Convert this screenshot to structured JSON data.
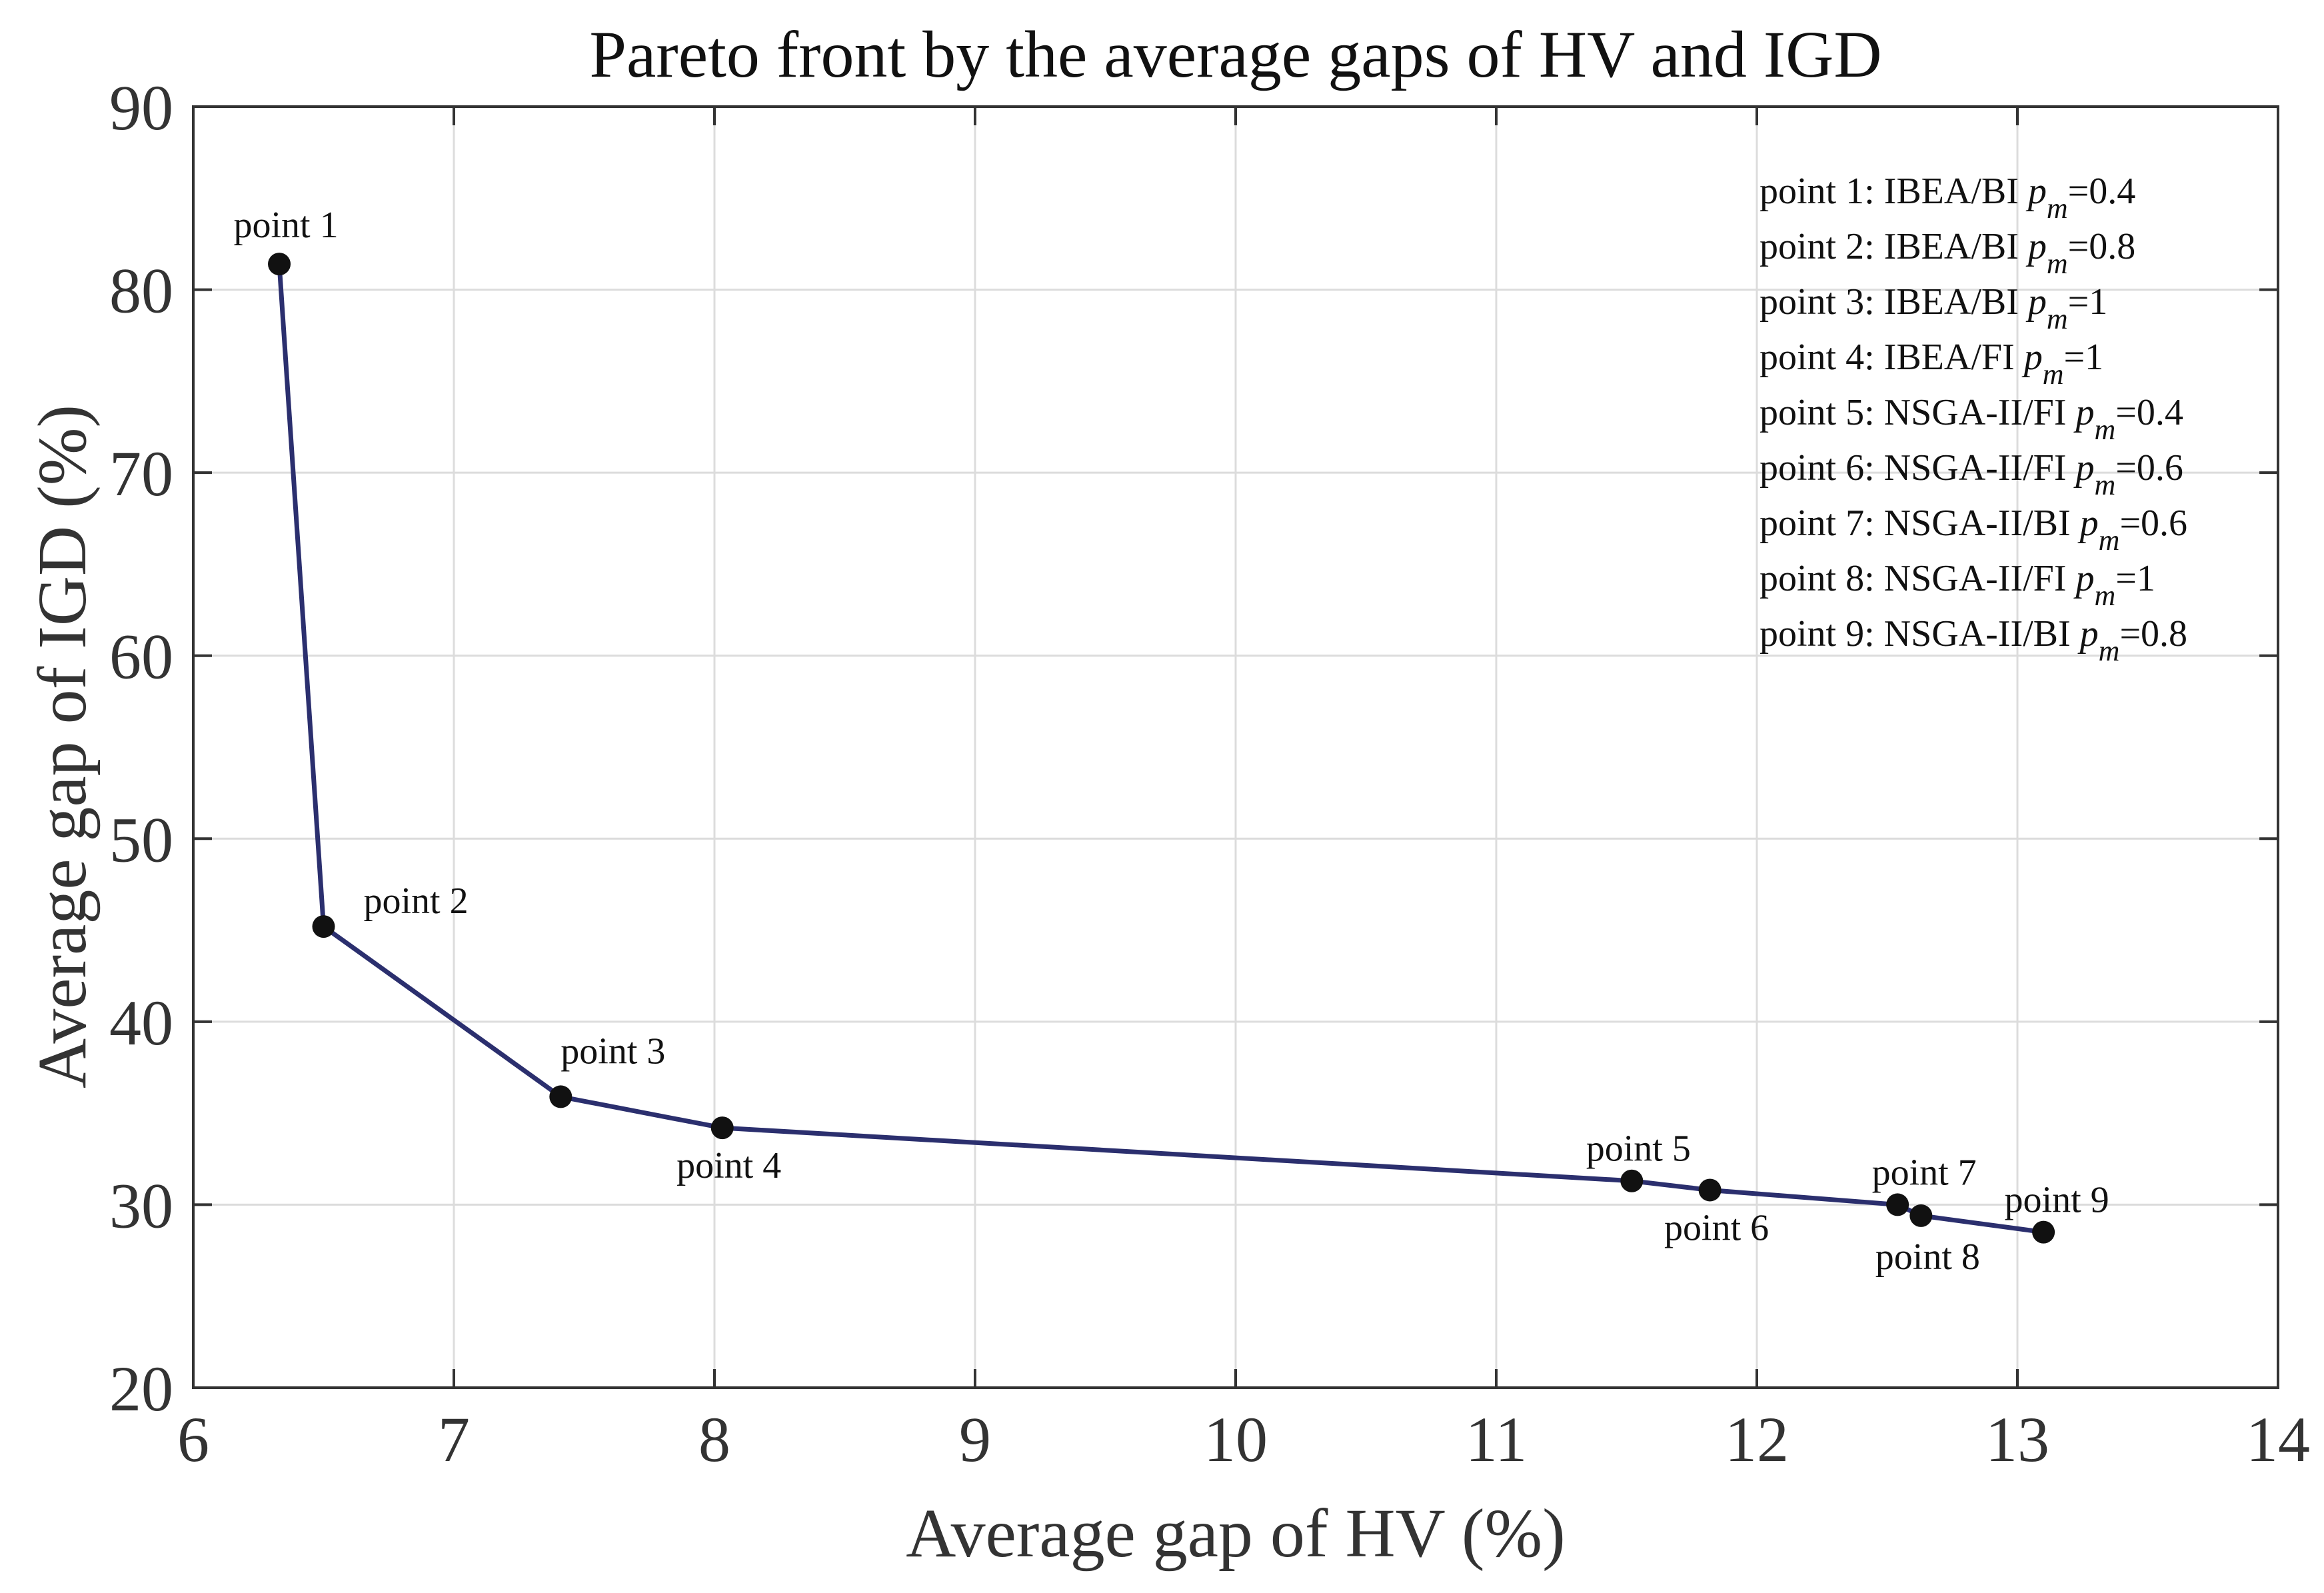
{
  "chart_data": {
    "type": "line",
    "title": "Pareto front by the average gaps of HV and IGD",
    "xlabel": "Average gap of HV (%)",
    "ylabel": "Average gap of IGD (%)",
    "xlim": [
      6,
      14
    ],
    "ylim": [
      20,
      90
    ],
    "xticks": [
      6,
      7,
      8,
      9,
      10,
      11,
      12,
      13,
      14
    ],
    "yticks": [
      20,
      30,
      40,
      50,
      60,
      70,
      80,
      90
    ],
    "grid": true,
    "line_color": "#2b2f6e",
    "marker_color": "#111111",
    "series": [
      {
        "name": "Pareto front",
        "points": [
          {
            "label": "point 1",
            "x": 6.33,
            "y": 81.4
          },
          {
            "label": "point 2",
            "x": 6.5,
            "y": 45.2
          },
          {
            "label": "point 3",
            "x": 7.41,
            "y": 35.9
          },
          {
            "label": "point 4",
            "x": 8.03,
            "y": 34.2
          },
          {
            "label": "point 5",
            "x": 11.52,
            "y": 31.3
          },
          {
            "label": "point 6",
            "x": 11.82,
            "y": 30.8
          },
          {
            "label": "point 7",
            "x": 12.54,
            "y": 30.0
          },
          {
            "label": "point 8",
            "x": 12.63,
            "y": 29.4
          },
          {
            "label": "point 9",
            "x": 13.1,
            "y": 28.5
          }
        ]
      }
    ],
    "legend": {
      "position": "top-right",
      "entries": [
        {
          "prefix": "point 1: IBEA/BI ",
          "p": "p",
          "sub": "m",
          "suffix": "=0.4"
        },
        {
          "prefix": "point 2: IBEA/BI ",
          "p": "p",
          "sub": "m",
          "suffix": "=0.8"
        },
        {
          "prefix": "point 3: IBEA/BI ",
          "p": "p",
          "sub": "m",
          "suffix": "=1"
        },
        {
          "prefix": "point 4: IBEA/FI ",
          "p": "p",
          "sub": "m",
          "suffix": "=1"
        },
        {
          "prefix": "point 5: NSGA-II/FI ",
          "p": "p",
          "sub": "m",
          "suffix": "=0.4"
        },
        {
          "prefix": "point 6: NSGA-II/FI ",
          "p": "p",
          "sub": "m",
          "suffix": "=0.6"
        },
        {
          "prefix": "point 7: NSGA-II/BI ",
          "p": "p",
          "sub": "m",
          "suffix": "=0.6"
        },
        {
          "prefix": "point 8: NSGA-II/FI ",
          "p": "p",
          "sub": "m",
          "suffix": "=1"
        },
        {
          "prefix": "point 9: NSGA-II/BI ",
          "p": "p",
          "sub": "m",
          "suffix": "=0.8"
        }
      ]
    }
  }
}
